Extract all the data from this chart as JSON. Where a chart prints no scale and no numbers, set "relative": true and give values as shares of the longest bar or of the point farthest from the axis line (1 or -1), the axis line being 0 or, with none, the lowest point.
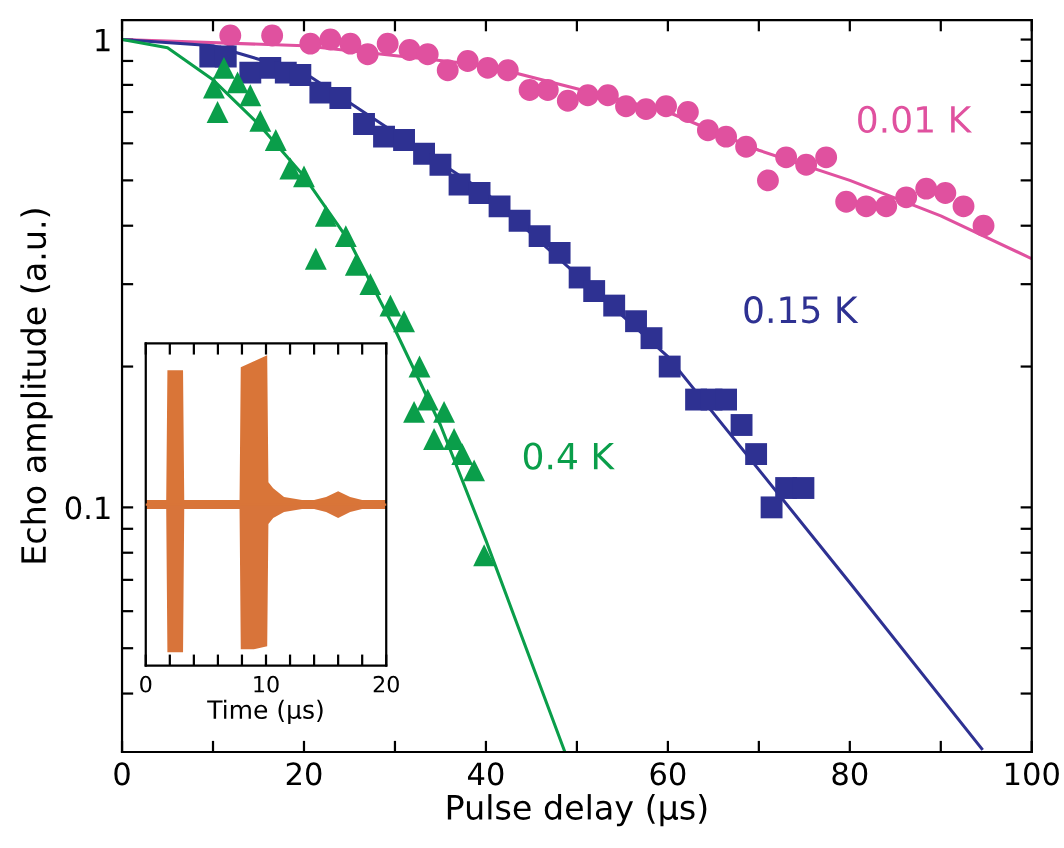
{
  "chart_data": [
    {
      "type": "scatter",
      "xlabel": "Pulse delay (µs)",
      "ylabel": "Echo amplitude (a.u.)",
      "log": "y",
      "xlim": [
        0,
        100
      ],
      "ylim": [
        0.03,
        1.1
      ],
      "xticks": [
        0,
        {
          "value": 10,
          "label": null
        },
        20,
        {
          "value": 30,
          "label": null
        },
        40,
        {
          "value": 50,
          "label": null
        },
        60,
        {
          "value": 70,
          "label": null
        },
        80,
        {
          "value": 90,
          "label": null
        },
        100
      ],
      "yticks": [
        {
          "value": 0.04,
          "label": null
        },
        {
          "value": 0.05,
          "label": null
        },
        {
          "value": 0.06,
          "label": null
        },
        {
          "value": 0.07,
          "label": null
        },
        {
          "value": 0.08,
          "label": null
        },
        {
          "value": 0.09,
          "label": null
        },
        0.1,
        {
          "value": 0.2,
          "label": null
        },
        {
          "value": 0.3,
          "label": null
        },
        {
          "value": 0.4,
          "label": null
        },
        {
          "value": 0.5,
          "label": null
        },
        {
          "value": 0.6,
          "label": null
        },
        {
          "value": 0.7,
          "label": null
        },
        {
          "value": 0.8,
          "label": null
        },
        {
          "value": 0.9,
          "label": null
        },
        1
      ],
      "series": [
        {
          "type": "scatter",
          "name": "0.01 K",
          "color": "#e0519f",
          "marker": "circle",
          "x": [
            11.9,
            16.5,
            20.7,
            22.9,
            25.1,
            27.0,
            29.2,
            31.6,
            33.6,
            35.8,
            38.0,
            40.2,
            42.4,
            44.8,
            46.8,
            49.0,
            51.2,
            53.4,
            55.4,
            57.6,
            59.8,
            62.2,
            64.4,
            66.4,
            68.6,
            71.0,
            73.0,
            75.2,
            77.4,
            79.6,
            81.8,
            84.0,
            86.2,
            88.4,
            90.5,
            92.5,
            94.7
          ],
          "values": [
            1.02,
            1.02,
            0.98,
            1.0,
            0.98,
            0.93,
            0.98,
            0.95,
            0.93,
            0.86,
            0.9,
            0.87,
            0.86,
            0.78,
            0.78,
            0.74,
            0.76,
            0.76,
            0.72,
            0.71,
            0.72,
            0.7,
            0.64,
            0.62,
            0.59,
            0.5,
            0.56,
            0.54,
            0.56,
            0.45,
            0.44,
            0.44,
            0.46,
            0.48,
            0.47,
            0.44,
            0.4
          ]
        },
        {
          "type": "scatter",
          "name": "0.15 K",
          "color": "#2e3192",
          "marker": "square",
          "x": [
            9.7,
            11.4,
            14.1,
            16.3,
            18.0,
            19.6,
            21.8,
            24.0,
            26.6,
            28.8,
            31.0,
            33.2,
            35.0,
            37.1,
            39.3,
            41.5,
            43.7,
            45.9,
            48.1,
            50.3,
            51.9,
            54.1,
            56.5,
            58.2,
            60.2,
            63.1,
            64.8,
            66.4,
            68.1,
            69.7,
            71.4,
            73.0,
            74.9
          ],
          "values": [
            0.92,
            0.92,
            0.85,
            0.87,
            0.85,
            0.84,
            0.77,
            0.75,
            0.66,
            0.62,
            0.61,
            0.57,
            0.54,
            0.49,
            0.47,
            0.44,
            0.41,
            0.38,
            0.35,
            0.31,
            0.29,
            0.27,
            0.25,
            0.23,
            0.2,
            0.17,
            0.17,
            0.17,
            0.15,
            0.13,
            0.1,
            0.11,
            0.11
          ]
        },
        {
          "type": "scatter",
          "name": "0.4 K",
          "color": "#0a9e4a",
          "marker": "triangle",
          "x": [
            10.1,
            10.5,
            11.2,
            12.7,
            14.1,
            15.2,
            16.9,
            18.5,
            20.0,
            21.3,
            22.4,
            24.6,
            25.7,
            27.3,
            29.5,
            31.0,
            32.7,
            33.6,
            32.1,
            35.4,
            34.3,
            36.5,
            37.4,
            38.7,
            39.8
          ],
          "values": [
            0.79,
            0.7,
            0.87,
            0.81,
            0.76,
            0.67,
            0.61,
            0.53,
            0.51,
            0.34,
            0.42,
            0.38,
            0.33,
            0.3,
            0.27,
            0.25,
            0.2,
            0.17,
            0.16,
            0.16,
            0.14,
            0.14,
            0.13,
            0.12,
            0.079
          ]
        },
        {
          "type": "line",
          "color": "#e0519f",
          "x": [
            0,
            20,
            40,
            60,
            70,
            80,
            90,
            100
          ],
          "values": [
            1.0,
            0.97,
            0.88,
            0.7,
            0.58,
            0.5,
            0.42,
            0.34
          ]
        },
        {
          "type": "line",
          "color": "#2e3192",
          "x": [
            0,
            10,
            20,
            40,
            60,
            80,
            94.5
          ],
          "values": [
            1.0,
            0.97,
            0.85,
            0.47,
            0.21,
            0.069,
            0.0305
          ]
        },
        {
          "type": "line",
          "color": "#0a9e4a",
          "x": [
            0,
            5,
            10,
            15,
            20,
            25,
            30,
            35,
            40,
            48.6
          ],
          "values": [
            1.0,
            0.96,
            0.82,
            0.66,
            0.51,
            0.37,
            0.24,
            0.15,
            0.085,
            0.0303
          ]
        }
      ]
    },
    {
      "type": "area",
      "relative": true,
      "xlabel": "Time (µs)",
      "tick_labels": "x",
      "xlim": [
        0,
        20
      ],
      "xticks": [
        0,
        {
          "value": 2,
          "label": null
        },
        {
          "value": 4,
          "label": null
        },
        {
          "value": 6,
          "label": null
        },
        {
          "value": 8,
          "label": null
        },
        10,
        {
          "value": 12,
          "label": null
        },
        {
          "value": 14,
          "label": null
        },
        {
          "value": 16,
          "label": null
        },
        {
          "value": 18,
          "label": null
        },
        20
      ],
      "series": [
        {
          "color": "#d97538",
          "x": [
            0,
            1.7,
            1.8,
            3.1,
            3.2,
            7.8,
            7.9,
            9,
            10.1,
            10.2,
            10.6,
            11.5,
            13,
            14,
            15,
            16,
            17,
            18,
            20
          ],
          "values": [
            0.03,
            0.03,
            0.9,
            0.9,
            0.03,
            0.03,
            0.92,
            0.96,
            1.0,
            0.15,
            0.11,
            0.05,
            0.03,
            0.03,
            0.05,
            0.09,
            0.05,
            0.03,
            0.03
          ]
        },
        {
          "color": "#d8743a",
          "x": [
            0,
            1.7,
            1.8,
            3.1,
            3.2,
            7.8,
            7.9,
            9,
            10.1,
            10.2,
            10.6,
            11.5,
            13,
            14,
            15,
            16,
            17,
            18,
            20
          ],
          "values": [
            -0.03,
            -0.03,
            -0.99,
            -0.99,
            -0.03,
            -0.03,
            -0.97,
            -0.97,
            -0.95,
            -0.13,
            -0.09,
            -0.05,
            -0.03,
            -0.03,
            -0.05,
            -0.09,
            -0.05,
            -0.03,
            -0.03
          ]
        }
      ]
    }
  ]
}
